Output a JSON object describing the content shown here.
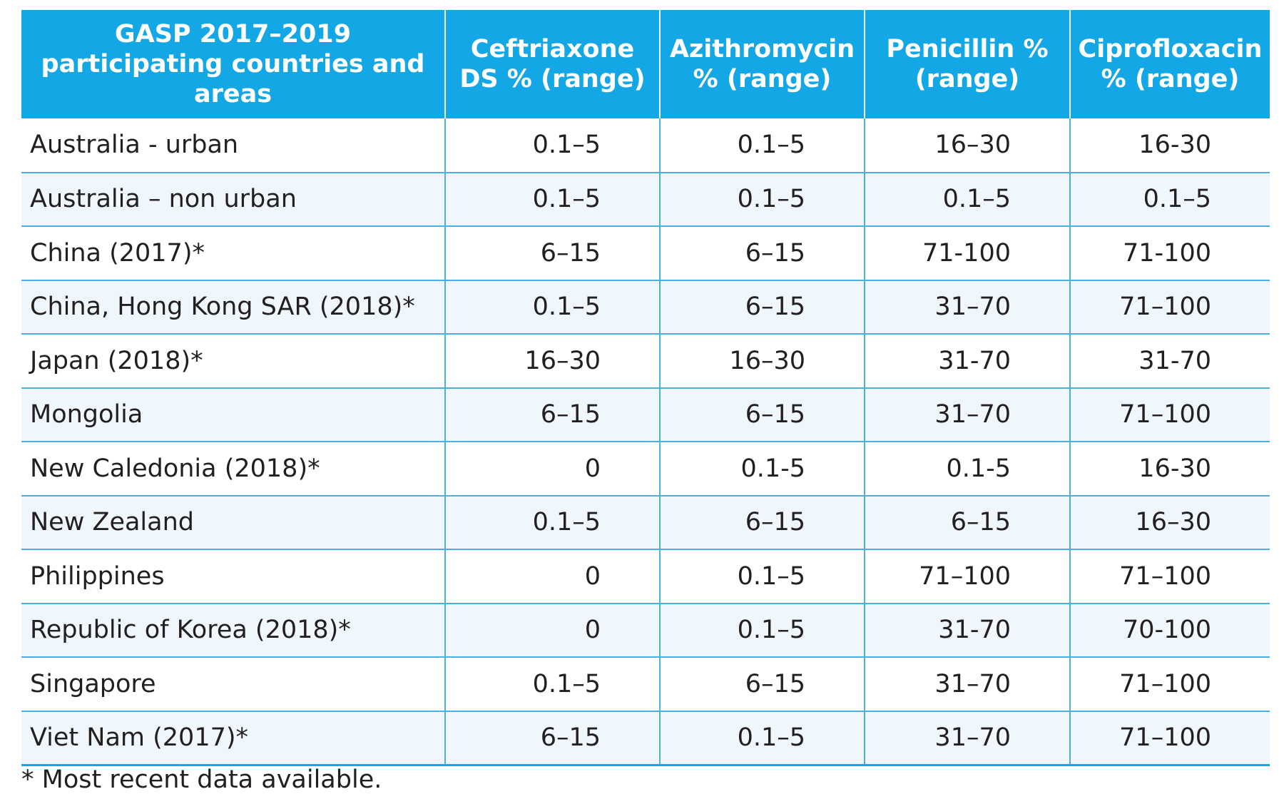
{
  "table": {
    "headers": [
      "GASP 2017–2019 participating countries and areas",
      "Ceftriaxone DS % (range)",
      "Azithromycin % (range)",
      "Penicillin % (range)",
      "Ciprofloxacin % (range)"
    ],
    "rows": [
      [
        "Australia - urban",
        "0.1–5",
        "0.1–5",
        "16–30",
        "16-30"
      ],
      [
        "Australia – non urban",
        "0.1–5",
        "0.1–5",
        "0.1–5",
        "0.1–5"
      ],
      [
        "China (2017)*",
        "6–15",
        "6–15",
        "71-100",
        "71-100"
      ],
      [
        "China, Hong Kong SAR (2018)*",
        "0.1–5",
        "6–15",
        "31–70",
        "71–100"
      ],
      [
        "Japan (2018)*",
        "16–30",
        "16–30",
        "31-70",
        "31-70"
      ],
      [
        "Mongolia",
        "6–15",
        "6–15",
        "31–70",
        "71–100"
      ],
      [
        "New Caledonia (2018)*",
        "0",
        "0.1-5",
        "0.1-5",
        "16-30"
      ],
      [
        "New Zealand",
        "0.1–5",
        "6–15",
        "6–15",
        "16–30"
      ],
      [
        "Philippines",
        "0",
        "0.1–5",
        "71–100",
        "71–100"
      ],
      [
        "Republic of Korea (2018)*",
        "0",
        "0.1–5",
        "31-70",
        "70-100"
      ],
      [
        "Singapore",
        "0.1–5",
        "6–15",
        "31–70",
        "71–100"
      ],
      [
        "Viet Nam (2017)*",
        "6–15",
        "0.1–5",
        "31–70",
        "71–100"
      ]
    ]
  },
  "footnote": "* Most recent data available.",
  "colors": {
    "header_bg": "#14a7e6",
    "header_text": "#ffffff",
    "row_alt_bg": "#f0f7fc",
    "grid_line": "#4ab0dc"
  }
}
